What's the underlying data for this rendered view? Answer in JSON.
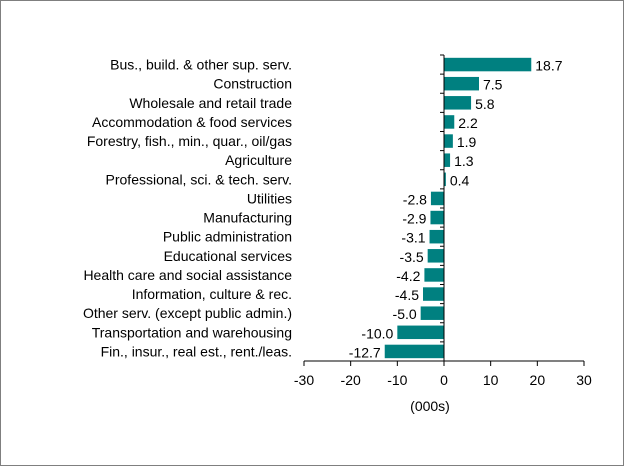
{
  "chart_data": {
    "type": "bar",
    "orientation": "horizontal",
    "categories": [
      "Bus., build. & other sup. serv.",
      "Construction",
      "Wholesale and retail trade",
      "Accommodation & food services",
      "Forestry, fish., min., quar., oil/gas",
      "Agriculture",
      "Professional, sci. & tech. serv.",
      "Utilities",
      "Manufacturing",
      "Public administration",
      "Educational services",
      "Health care and social assistance",
      "Information, culture & rec.",
      "Other serv. (except public admin.)",
      "Transportation and warehousing",
      "Fin., insur., real est., rent./leas."
    ],
    "values": [
      18.7,
      7.5,
      5.8,
      2.2,
      1.9,
      1.3,
      0.4,
      -2.8,
      -2.9,
      -3.1,
      -3.5,
      -4.2,
      -4.5,
      -5.0,
      -10.0,
      -12.7
    ],
    "value_labels": [
      "18.7",
      "7.5",
      "5.8",
      "2.2",
      "1.9",
      "1.3",
      "0.4",
      "-2.8",
      "-2.9",
      "-3.1",
      "-3.5",
      "-4.2",
      "-4.5",
      "-5.0",
      "-10.0",
      "-12.7"
    ],
    "xlim": [
      -30,
      30
    ],
    "x_ticks": [
      "-30",
      "-20",
      "-10",
      "0",
      "10",
      "20",
      "30"
    ],
    "xlabel": "(000s)",
    "bar_color": "#008080",
    "grid": false
  }
}
